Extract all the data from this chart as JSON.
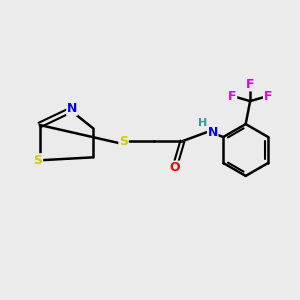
{
  "background_color": "#ebebeb",
  "bond_color": "#000000",
  "atom_colors": {
    "S": "#cccc00",
    "N": "#0000ee",
    "O": "#ee0000",
    "F": "#dd00dd",
    "C": "#000000",
    "H": "#339999"
  },
  "figsize": [
    3.0,
    3.0
  ],
  "dpi": 100
}
